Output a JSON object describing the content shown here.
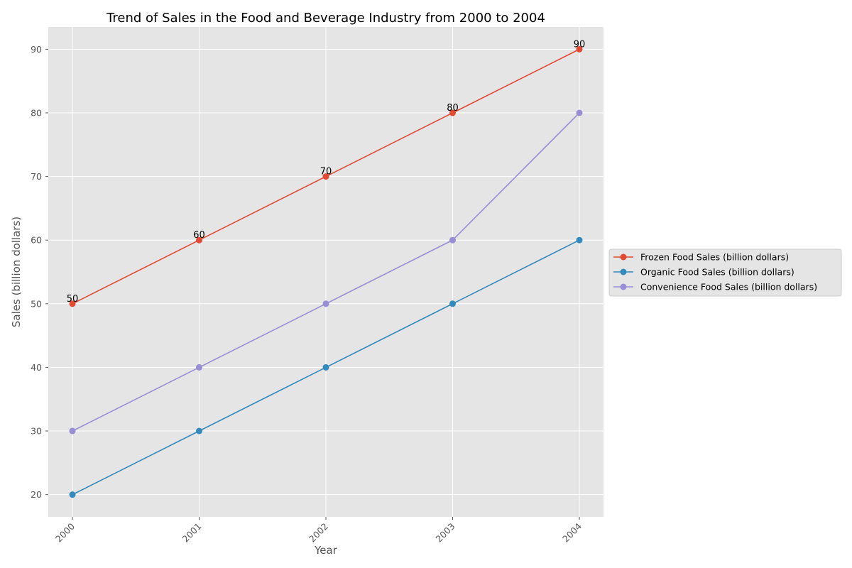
{
  "chart_data": {
    "type": "line",
    "title": "Trend of Sales in the Food and Beverage Industry from 2000 to 2004",
    "xlabel": "Year",
    "ylabel": "Sales (billion dollars)",
    "categories": [
      "2000",
      "2001",
      "2002",
      "2003",
      "2004"
    ],
    "yticks": [
      20,
      30,
      40,
      50,
      60,
      70,
      80,
      90
    ],
    "ylim": [
      16.5,
      93.5
    ],
    "grid": true,
    "legend_position": "right",
    "series": [
      {
        "name": "Frozen Food Sales (billion dollars)",
        "values": [
          50,
          60,
          70,
          80,
          90
        ],
        "color": "#E24A33",
        "show_labels": true
      },
      {
        "name": "Organic Food Sales (billion dollars)",
        "values": [
          20,
          30,
          40,
          50,
          60
        ],
        "color": "#348ABD",
        "show_labels": false
      },
      {
        "name": "Convenience Food Sales (billion dollars)",
        "values": [
          30,
          40,
          50,
          60,
          80
        ],
        "color": "#988ED5",
        "show_labels": false
      }
    ],
    "plot_background": "#E5E5E5",
    "grid_color": "#FFFFFF"
  }
}
